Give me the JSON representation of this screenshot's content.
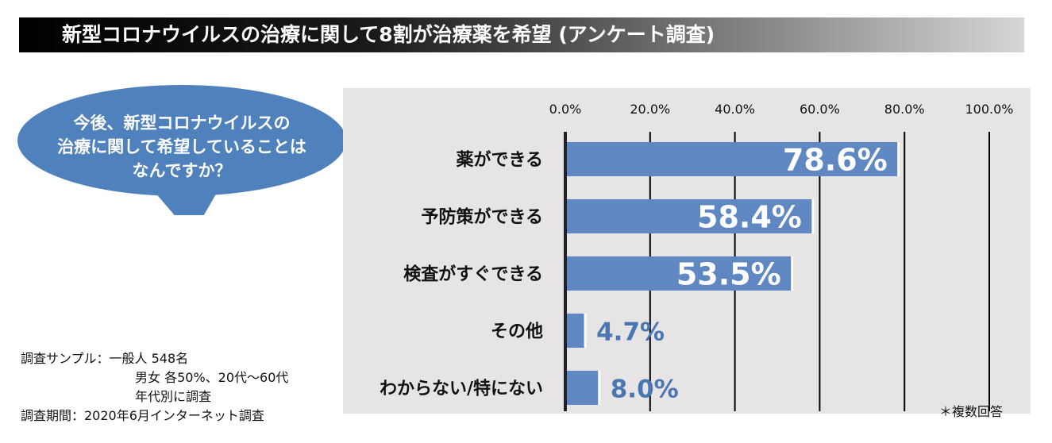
{
  "header": {
    "title": "新型コロナウイルスの治療に関して8割が治療薬を希望 (アンケート調査)"
  },
  "bubble": {
    "lines": [
      "今後、新型コロナウイルスの",
      "治療に関して希望していることは",
      "なんですか？"
    ],
    "color": "#4f81bd"
  },
  "notes": {
    "sample_label": "調査サンプル：",
    "sample_line1": "一般人 548名",
    "sample_line2": "男女 各50%、20代～60代",
    "sample_line3": "年代別に調査",
    "period": "調査期間：2020年6月インターネット調査"
  },
  "footnote": "＊複数回答",
  "chart_data": {
    "type": "bar",
    "orientation": "horizontal",
    "categories": [
      "薬ができる",
      "予防策ができる",
      "検査がすぐできる",
      "その他",
      "わからない/特にない"
    ],
    "values": [
      78.6,
      58.4,
      53.5,
      4.7,
      8.0
    ],
    "value_labels": [
      "78.6%",
      "58.4%",
      "53.5%",
      "4.7%",
      "8.0%"
    ],
    "xlim": [
      0,
      100
    ],
    "xticks": [
      0,
      20,
      40,
      60,
      80,
      100
    ],
    "xtick_labels": [
      "0.0%",
      "20.0%",
      "40.0%",
      "60.0%",
      "80.0%",
      "100.0%"
    ],
    "axis_position": "top",
    "grid": true,
    "bar_color": "#5f87c2",
    "label_inside_color": "#ffffff",
    "label_outside_color": "#4a77b4",
    "background": "#e6e4e4"
  }
}
